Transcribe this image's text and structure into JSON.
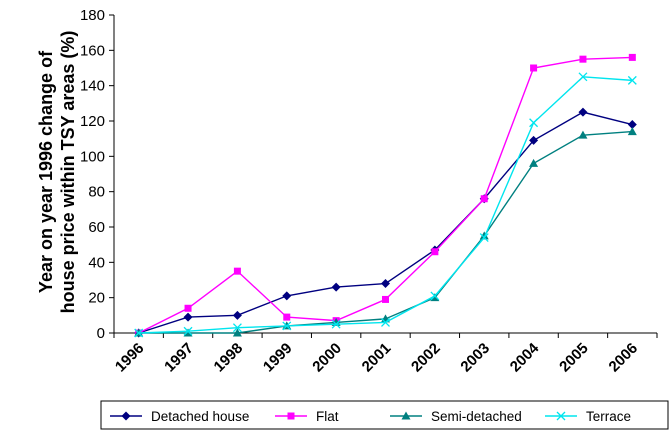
{
  "chart_data": {
    "type": "line",
    "title": "",
    "xlabel": "",
    "ylabel_lines": [
      "Year on year 1996 change of",
      "house price within TSY areas (%)"
    ],
    "categories": [
      "1996",
      "1997",
      "1998",
      "1999",
      "2000",
      "2001",
      "2002",
      "2003",
      "2004",
      "2005",
      "2006"
    ],
    "ylim": [
      0,
      180
    ],
    "yticks": [
      "0",
      "20",
      "40",
      "60",
      "80",
      "100",
      "120",
      "140",
      "160",
      "180"
    ],
    "legend_position": "bottom",
    "grid": false,
    "series": [
      {
        "name": "Detached house",
        "color": "#000080",
        "marker": "diamond",
        "values": [
          0,
          9,
          10,
          21,
          26,
          28,
          47,
          76,
          109,
          125,
          118
        ]
      },
      {
        "name": "Flat",
        "color": "#ff00ff",
        "marker": "square",
        "values": [
          0,
          14,
          35,
          9,
          7,
          19,
          46,
          76,
          150,
          155,
          156
        ]
      },
      {
        "name": "Semi-detached",
        "color": "#008080",
        "marker": "triangle",
        "values": [
          0,
          0,
          0,
          4,
          6,
          8,
          20,
          55,
          96,
          112,
          114
        ]
      },
      {
        "name": "Terrace",
        "color": "#00e5ee",
        "marker": "cross",
        "values": [
          0,
          1,
          3,
          4,
          5,
          6,
          21,
          54,
          119,
          145,
          143
        ]
      }
    ]
  }
}
